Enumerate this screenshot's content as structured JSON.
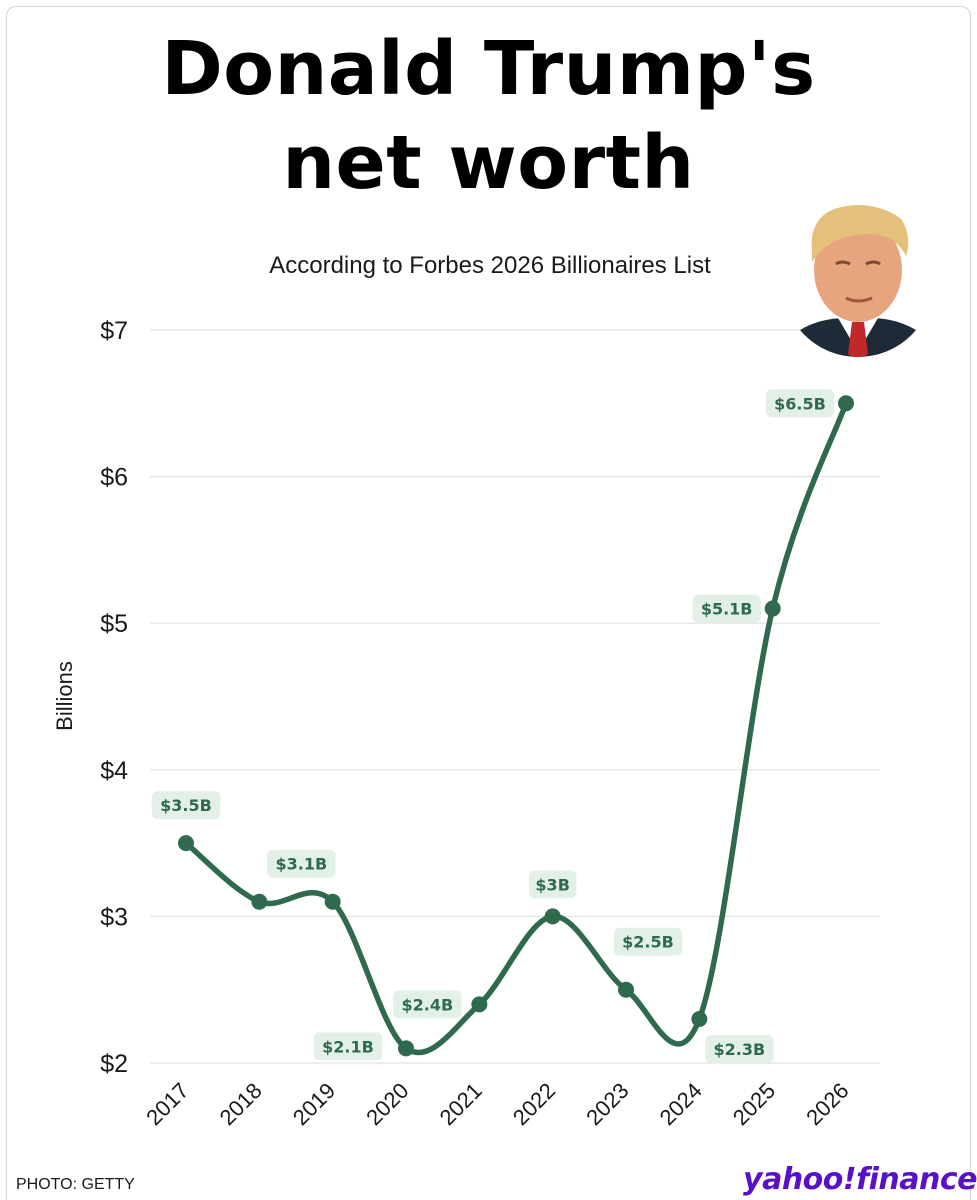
{
  "header": {
    "title_line1": "Donald Trump's",
    "title_line2": "net worth",
    "subtitle": "According to Forbes 2026 Billionaires List"
  },
  "footer": {
    "photo_credit": "PHOTO: GETTY",
    "brand": "yahoo!finance"
  },
  "portrait": {
    "icon": "person-portrait-icon"
  },
  "colors": {
    "line": "#2f6a4f",
    "label_text": "#2f6a4f",
    "label_bg": "#e3f0e8",
    "grid": "#e2e2e2",
    "axis_text": "#1a1a1a",
    "brand": "#5a0fc8"
  },
  "chart_data": {
    "type": "line",
    "title": "Donald Trump's net worth",
    "subtitle": "According to Forbes 2026 Billionaires List",
    "xlabel": "",
    "ylabel": "Billions",
    "x": [
      "2017",
      "2018",
      "2019",
      "2020",
      "2021",
      "2022",
      "2023",
      "2024",
      "2025",
      "2026"
    ],
    "series": [
      {
        "values": [
          3.5,
          3.1,
          3.1,
          2.1,
          2.4,
          3.0,
          2.5,
          2.3,
          5.1,
          6.5
        ]
      }
    ],
    "data_labels": [
      "$3.5B",
      "$3.1B",
      "",
      "$2.1B",
      "$2.4B",
      "$3B",
      "$2.5B",
      "$2.3B",
      "$5.1B",
      "$6.5B"
    ],
    "ylim": [
      2,
      7
    ],
    "yticks": [
      2,
      3,
      4,
      5,
      6,
      7
    ],
    "ytick_labels": [
      "$2",
      "$3",
      "$4",
      "$5",
      "$6",
      "$7"
    ],
    "grid": true,
    "legend": "none",
    "curve": "smooth"
  }
}
